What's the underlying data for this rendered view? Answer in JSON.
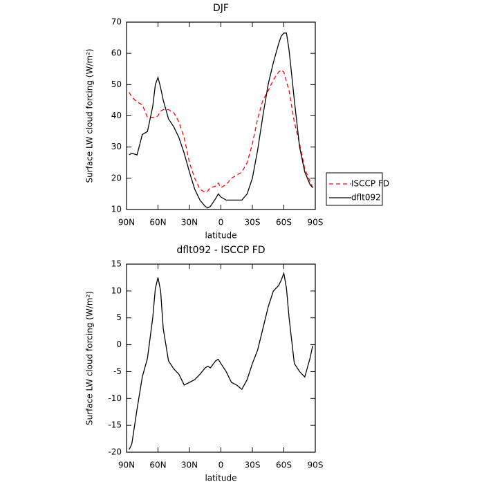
{
  "chart_data": [
    {
      "type": "line",
      "title": "DJF",
      "xlabel": "latitude",
      "ylabel": "Surface LW cloud forcing (W/m²)",
      "x": [
        87.5,
        85,
        80,
        75,
        70,
        65,
        62.5,
        60,
        57.5,
        55,
        50,
        45,
        40,
        35,
        30,
        25,
        20,
        15,
        12.5,
        10,
        5,
        2.5,
        0,
        -5,
        -10,
        -15,
        -20,
        -25,
        -30,
        -35,
        -40,
        -45,
        -50,
        -55,
        -57.5,
        -60,
        -62.5,
        -65,
        -70,
        -75,
        -80,
        -85,
        -87.5
      ],
      "series": [
        {
          "name": "ISCCP FD",
          "color": "#ff0000",
          "style": "dashed",
          "values": [
            47.5,
            46,
            44.5,
            43.5,
            39.5,
            39.5,
            39.5,
            40,
            41.5,
            42,
            42,
            41,
            38,
            33,
            25,
            20,
            16.5,
            15.5,
            16,
            17,
            17.5,
            18.5,
            17,
            18,
            20,
            21,
            22,
            25,
            31,
            39,
            45,
            48,
            51.5,
            54,
            54.7,
            54,
            51,
            48,
            38,
            31,
            23,
            19,
            17
          ]
        },
        {
          "name": "dflt092",
          "color": "#000000",
          "style": "solid",
          "values": [
            27.5,
            28,
            27.5,
            34,
            35,
            43,
            50,
            52.3,
            49,
            45,
            39,
            36.5,
            33,
            28,
            22,
            16.5,
            13,
            11,
            10.5,
            11,
            13.5,
            15,
            14,
            13,
            13,
            13,
            13,
            15,
            20,
            29,
            40,
            50,
            57,
            63,
            65.5,
            66.5,
            66.5,
            61,
            45,
            30,
            22,
            18,
            17
          ]
        }
      ],
      "xlim": [
        90,
        -90
      ],
      "ylim": [
        10,
        70
      ],
      "xticks": [
        {
          "value": 90,
          "label": "90N"
        },
        {
          "value": 60,
          "label": "60N"
        },
        {
          "value": 30,
          "label": "30N"
        },
        0,
        {
          "value": -30,
          "label": "30S"
        },
        {
          "value": -60,
          "label": "60S"
        },
        {
          "value": -90,
          "label": "90S"
        }
      ],
      "yticks": [
        10,
        20,
        30,
        40,
        50,
        60,
        70
      ],
      "legend": "right"
    },
    {
      "type": "line",
      "title": "dflt092 - ISCCP FD",
      "xlabel": "latitude",
      "ylabel": "Surface LW cloud forcing (W/m²)",
      "x": [
        87.5,
        85,
        80,
        75,
        70,
        65,
        62.5,
        60,
        57.5,
        55,
        50,
        45,
        40,
        35,
        30,
        25,
        20,
        15,
        12.5,
        10,
        5,
        2.5,
        0,
        -5,
        -10,
        -15,
        -20,
        -25,
        -30,
        -35,
        -40,
        -45,
        -50,
        -55,
        -57.5,
        -60,
        -62.5,
        -65,
        -70,
        -75,
        -80,
        -85,
        -87.5
      ],
      "color": "#000000",
      "values": [
        -19.5,
        -18.5,
        -12,
        -6,
        -2.5,
        5,
        10.5,
        12.5,
        10,
        3,
        -3,
        -4.5,
        -5.5,
        -7.5,
        -7,
        -6.5,
        -5.5,
        -4.3,
        -4,
        -4.3,
        -3,
        -2.7,
        -3.5,
        -5,
        -7,
        -7.5,
        -8.3,
        -6.5,
        -3.5,
        -1,
        3,
        7,
        10,
        11,
        12,
        13.3,
        10.5,
        5,
        -3.5,
        -5,
        -6,
        -2.5,
        -0.2
      ],
      "xlim": [
        90,
        -90
      ],
      "ylim": [
        -20,
        15
      ],
      "xticks": [
        {
          "value": 90,
          "label": "90N"
        },
        {
          "value": 60,
          "label": "60N"
        },
        {
          "value": 30,
          "label": "30N"
        },
        0,
        {
          "value": -30,
          "label": "30S"
        },
        {
          "value": -60,
          "label": "60S"
        },
        {
          "value": -90,
          "label": "90S"
        }
      ],
      "yticks": [
        -20,
        -15,
        -10,
        -5,
        0,
        5,
        10,
        15
      ]
    }
  ]
}
